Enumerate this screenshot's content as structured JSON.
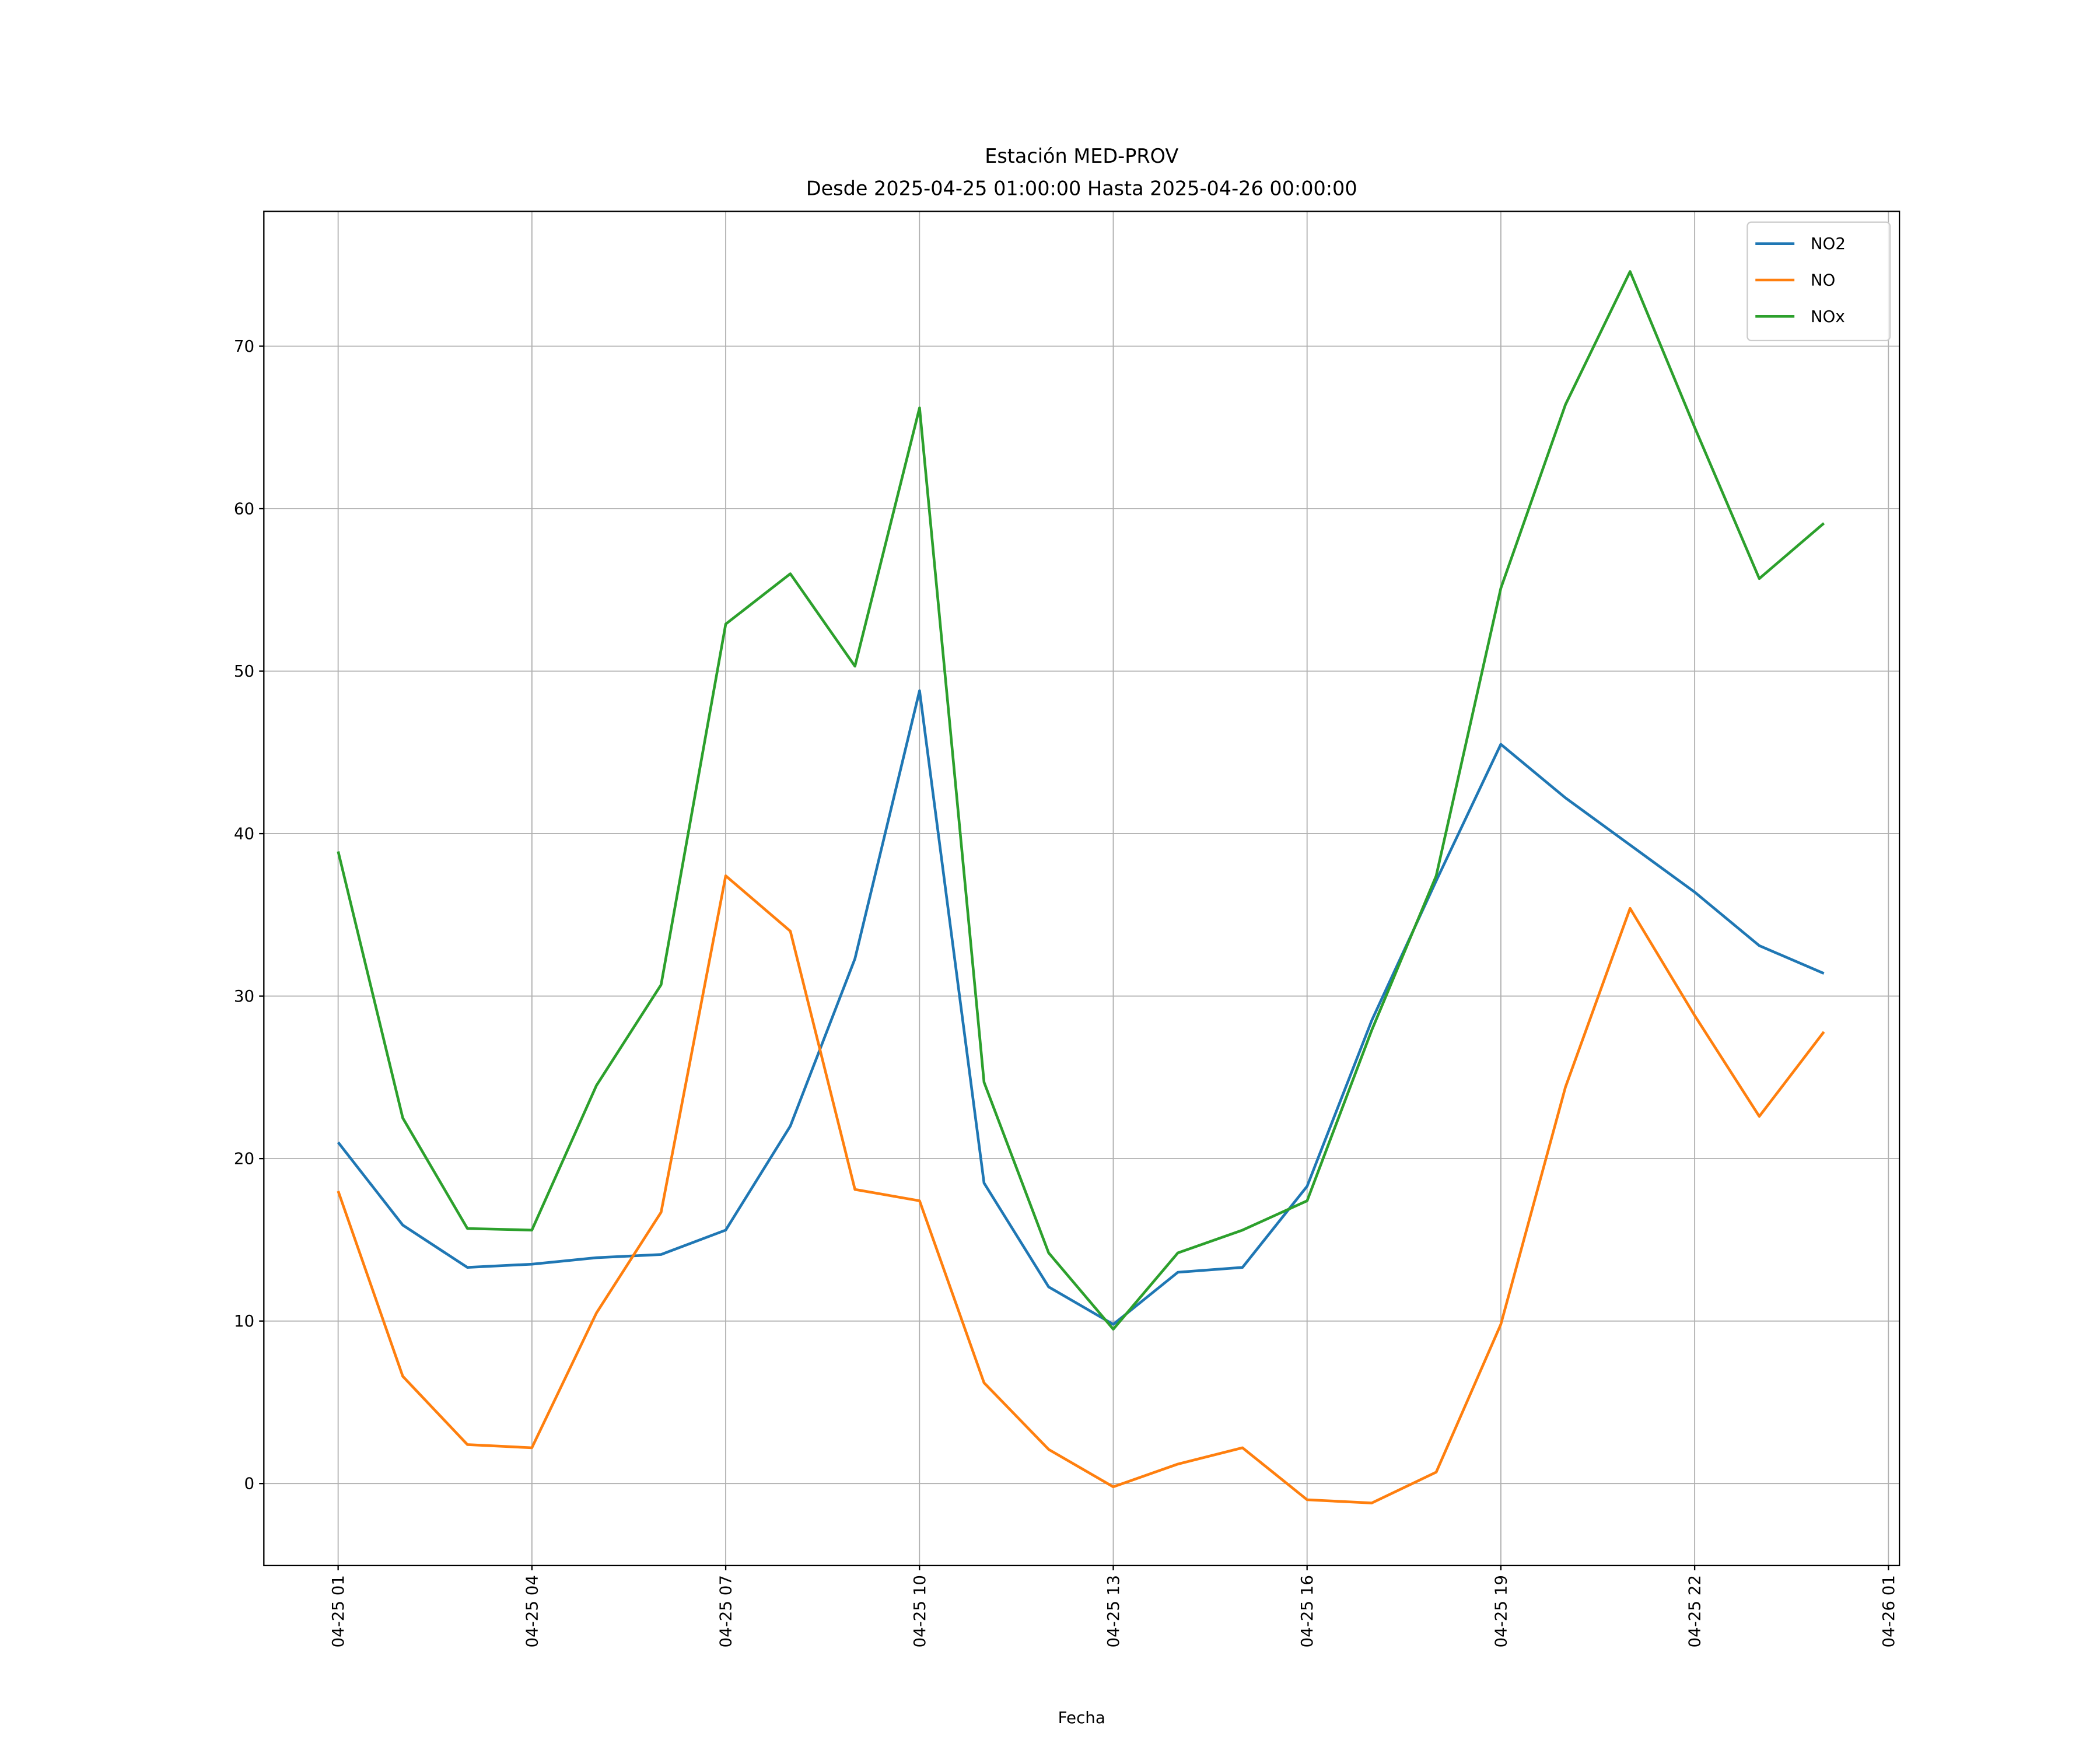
{
  "chart_data": {
    "type": "line",
    "title": "Estación MED-PROV",
    "subtitle": "Desde 2025-04-25 01:00:00 Hasta 2025-04-26 00:00:00",
    "xlabel": "Fecha",
    "ylabel": "",
    "x_unit": "hours since 2025-04-25 00:00",
    "x": [
      1,
      2,
      3,
      4,
      5,
      6,
      7,
      8,
      9,
      10,
      11,
      12,
      13,
      14,
      15,
      16,
      17,
      18,
      19,
      20,
      21,
      22,
      23,
      24
    ],
    "xlim": [
      -0.15,
      25.17
    ],
    "ylim": [
      -5.05,
      78.3
    ],
    "grid": true,
    "legend_position": "top-right",
    "xticks": [
      {
        "value": 1,
        "label": "04-25 01"
      },
      {
        "value": 4,
        "label": "04-25 04"
      },
      {
        "value": 7,
        "label": "04-25 07"
      },
      {
        "value": 10,
        "label": "04-25 10"
      },
      {
        "value": 13,
        "label": "04-25 13"
      },
      {
        "value": 16,
        "label": "04-25 16"
      },
      {
        "value": 19,
        "label": "04-25 19"
      },
      {
        "value": 22,
        "label": "04-25 22"
      },
      {
        "value": 25,
        "label": "04-26 01"
      }
    ],
    "yticks": [
      {
        "value": 0,
        "label": "0"
      },
      {
        "value": 10,
        "label": "10"
      },
      {
        "value": 20,
        "label": "20"
      },
      {
        "value": 30,
        "label": "30"
      },
      {
        "value": 40,
        "label": "40"
      },
      {
        "value": 50,
        "label": "50"
      },
      {
        "value": 60,
        "label": "60"
      },
      {
        "value": 70,
        "label": "70"
      }
    ],
    "series": [
      {
        "name": "NO2",
        "color": "#1f77b4",
        "values": [
          21.0,
          15.9,
          13.3,
          13.5,
          13.9,
          14.1,
          15.6,
          22.0,
          32.3,
          48.8,
          18.5,
          12.1,
          9.8,
          13.0,
          13.3,
          18.3,
          28.5,
          37.1,
          45.5,
          42.2,
          39.3,
          36.4,
          33.1,
          31.4
        ]
      },
      {
        "name": "NO",
        "color": "#ff7f0e",
        "values": [
          18.0,
          6.6,
          2.4,
          2.2,
          10.5,
          16.7,
          37.4,
          34.0,
          18.1,
          17.4,
          6.2,
          2.1,
          -0.2,
          1.2,
          2.2,
          -1.0,
          -1.2,
          0.7,
          9.8,
          24.4,
          35.4,
          28.8,
          22.6,
          27.8
        ]
      },
      {
        "name": "NOx",
        "color": "#2ca02c",
        "values": [
          38.9,
          22.5,
          15.7,
          15.6,
          24.5,
          30.7,
          52.9,
          56.0,
          50.3,
          66.2,
          24.7,
          14.2,
          9.5,
          14.2,
          15.6,
          17.4,
          27.9,
          37.4,
          55.1,
          66.4,
          74.6,
          65.0,
          55.7,
          59.1
        ]
      }
    ]
  }
}
